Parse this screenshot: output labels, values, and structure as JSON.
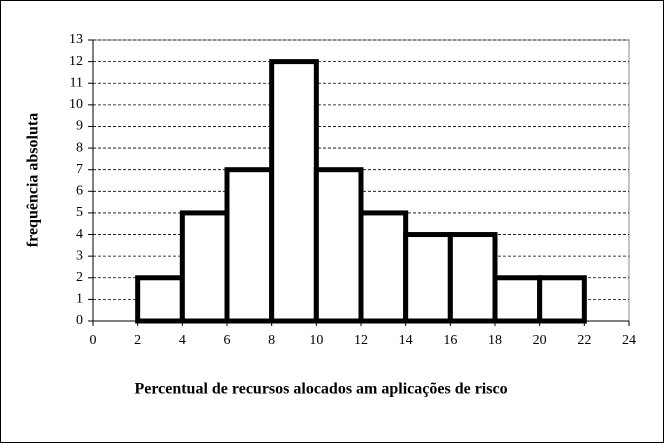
{
  "chart_data": {
    "type": "histogram",
    "x_label": "Percentual de recursos alocados am aplicações de risco",
    "y_label": "frequência absoluta",
    "bins": [
      2,
      4,
      6,
      8,
      10,
      12,
      14,
      16,
      18,
      20,
      22
    ],
    "values": [
      2,
      5,
      7,
      12,
      7,
      5,
      4,
      4,
      2,
      2
    ],
    "color": "#ffffff",
    "xlim": [
      0,
      24
    ],
    "xticks": [
      0,
      2,
      4,
      6,
      8,
      10,
      12,
      14,
      16,
      18,
      20,
      22,
      24
    ],
    "ylim": [
      0,
      13
    ],
    "yticks": [
      0,
      1,
      2,
      3,
      4,
      5,
      6,
      7,
      8,
      9,
      10,
      11,
      12,
      13
    ],
    "grid": true
  }
}
